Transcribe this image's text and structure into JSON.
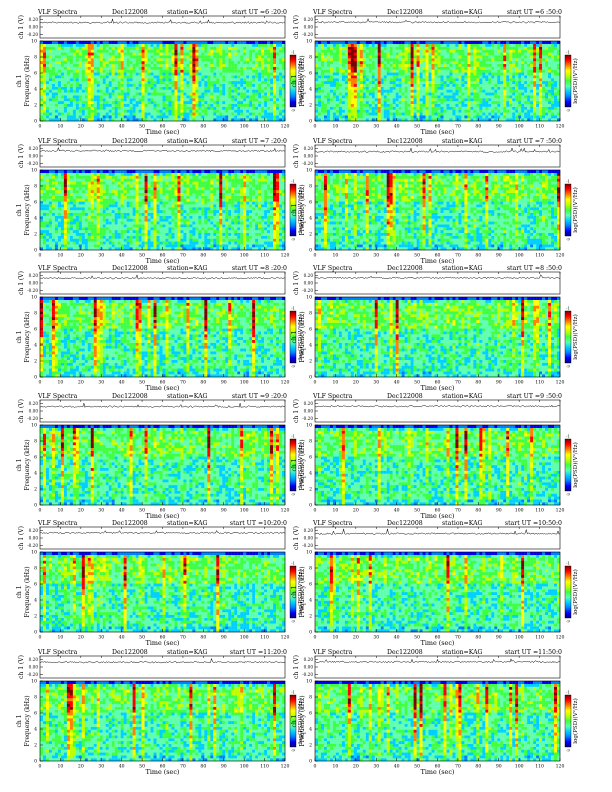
{
  "page": {
    "columns": 2,
    "rows": 6
  },
  "colors": {
    "colormap": [
      "#00007f",
      "#0000ff",
      "#0080ff",
      "#00d0ff",
      "#60ffb0",
      "#40ff40",
      "#c0ff00",
      "#ffff00",
      "#ff8000",
      "#ff0000",
      "#7f0000"
    ],
    "trace": "#000000"
  },
  "chart_data": [
    {
      "type": "heatmap",
      "title_left": "VLF Spectra",
      "date": "Dec122008",
      "station": "station=KAG",
      "start_ut": "start  UT =6 :20:0",
      "channel_label": "ch 1 (V)",
      "channel_ticks": [
        "0.20",
        "0.00",
        "-0.20"
      ],
      "freq_label": "Frequency  (kHz)",
      "freq_ticks": [
        "0",
        "2",
        "4",
        "6",
        "8",
        "10"
      ],
      "freq_range": [
        0,
        10
      ],
      "time_label": "Time  (sec)",
      "time_ticks": [
        "0",
        "10",
        "20",
        "30",
        "40",
        "50",
        "60",
        "70",
        "80",
        "90",
        "100",
        "110",
        "120"
      ],
      "time_range": [
        0,
        120
      ],
      "colorbar_label": "log(PSD)(V²/Hz)",
      "colorbar_range": [
        -9,
        -1
      ]
    },
    {
      "type": "heatmap",
      "title_left": "VLF Spectra",
      "date": "Dec122008",
      "station": "station=KAG",
      "start_ut": "start  UT =6 :50:0",
      "channel_label": "ch 1 (V)",
      "channel_ticks": [
        "0.20",
        "0.00",
        "-0.20"
      ],
      "freq_label": "Frequency  (kHz)",
      "freq_ticks": [
        "0",
        "2",
        "4",
        "6",
        "8",
        "10"
      ],
      "freq_range": [
        0,
        10
      ],
      "time_label": "Time  (sec)",
      "time_ticks": [
        "0",
        "10",
        "20",
        "30",
        "40",
        "50",
        "60",
        "70",
        "80",
        "90",
        "100",
        "110",
        "120"
      ],
      "time_range": [
        0,
        120
      ],
      "colorbar_label": "log(PSD)(V²/Hz)",
      "colorbar_range": [
        -9,
        -1
      ]
    },
    {
      "type": "heatmap",
      "title_left": "VLF Spectra",
      "date": "Dec122008",
      "station": "station=KAG",
      "start_ut": "start  UT =7 :20:0",
      "channel_label": "ch 1 (V)",
      "channel_ticks": [
        "0.20",
        "0.00",
        "-0.20"
      ],
      "freq_label": "Frequency  (kHz)",
      "freq_ticks": [
        "0",
        "2",
        "4",
        "6",
        "8",
        "10"
      ],
      "freq_range": [
        0,
        10
      ],
      "time_label": "Time  (sec)",
      "time_ticks": [
        "0",
        "10",
        "20",
        "30",
        "40",
        "50",
        "60",
        "70",
        "80",
        "90",
        "100",
        "110",
        "120"
      ],
      "time_range": [
        0,
        120
      ],
      "colorbar_label": "log(PSD)(V²/Hz)",
      "colorbar_range": [
        -9,
        -1
      ]
    },
    {
      "type": "heatmap",
      "title_left": "VLF Spectra",
      "date": "Dec122008",
      "station": "station=KAG",
      "start_ut": "start  UT =7 :50:0",
      "channel_label": "ch 1 (V)",
      "channel_ticks": [
        "0.20",
        "0.00",
        "-0.20"
      ],
      "freq_label": "Frequency  (kHz)",
      "freq_ticks": [
        "0",
        "2",
        "4",
        "6",
        "8",
        "10"
      ],
      "freq_range": [
        0,
        10
      ],
      "time_label": "Time  (sec)",
      "time_ticks": [
        "0",
        "10",
        "20",
        "30",
        "40",
        "50",
        "60",
        "70",
        "80",
        "90",
        "100",
        "110",
        "120"
      ],
      "time_range": [
        0,
        120
      ],
      "colorbar_label": "log(PSD)(V²/Hz)",
      "colorbar_range": [
        -9,
        -1
      ]
    },
    {
      "type": "heatmap",
      "title_left": "VLF Spectra",
      "date": "Dec122008",
      "station": "station=KAG",
      "start_ut": "start  UT =8 :20:0",
      "channel_label": "ch 1 (V)",
      "channel_ticks": [
        "0.20",
        "0.00",
        "-0.20"
      ],
      "freq_label": "Frequency  (kHz)",
      "freq_ticks": [
        "0",
        "2",
        "4",
        "6",
        "8",
        "10"
      ],
      "freq_range": [
        0,
        10
      ],
      "time_label": "Time  (sec)",
      "time_ticks": [
        "0",
        "10",
        "20",
        "30",
        "40",
        "50",
        "60",
        "70",
        "80",
        "90",
        "100",
        "110",
        "120"
      ],
      "time_range": [
        0,
        120
      ],
      "colorbar_label": "log(PSD)(V²/Hz)",
      "colorbar_range": [
        -9,
        -1
      ]
    },
    {
      "type": "heatmap",
      "title_left": "VLF Spectra",
      "date": "Dec122008",
      "station": "station=KAG",
      "start_ut": "start  UT =8 :50:0",
      "channel_label": "ch 1 (V)",
      "channel_ticks": [
        "0.20",
        "0.00",
        "-0.20"
      ],
      "freq_label": "Frequency  (kHz)",
      "freq_ticks": [
        "0",
        "2",
        "4",
        "6",
        "8",
        "10"
      ],
      "freq_range": [
        0,
        10
      ],
      "time_label": "Time  (sec)",
      "time_ticks": [
        "0",
        "10",
        "20",
        "30",
        "40",
        "50",
        "60",
        "70",
        "80",
        "90",
        "100",
        "110",
        "120"
      ],
      "time_range": [
        0,
        120
      ],
      "colorbar_label": "log(PSD)(V²/Hz)",
      "colorbar_range": [
        -9,
        -1
      ]
    },
    {
      "type": "heatmap",
      "title_left": "VLF Spectra",
      "date": "Dec122008",
      "station": "station=KAG",
      "start_ut": "start  UT =9 :20:0",
      "channel_label": "ch 1 (V)",
      "channel_ticks": [
        "0.20",
        "0.00",
        "-0.20"
      ],
      "freq_label": "Frequency  (kHz)",
      "freq_ticks": [
        "0",
        "2",
        "4",
        "6",
        "8",
        "10"
      ],
      "freq_range": [
        0,
        10
      ],
      "time_label": "Time  (sec)",
      "time_ticks": [
        "0",
        "10",
        "20",
        "30",
        "40",
        "50",
        "60",
        "70",
        "80",
        "90",
        "100",
        "110",
        "120"
      ],
      "time_range": [
        0,
        120
      ],
      "colorbar_label": "log(PSD)(V²/Hz)",
      "colorbar_range": [
        -9,
        -1
      ]
    },
    {
      "type": "heatmap",
      "title_left": "VLF Spectra",
      "date": "Dec122008",
      "station": "station=KAG",
      "start_ut": "start  UT =9 :50:0",
      "channel_label": "ch 1 (V)",
      "channel_ticks": [
        "0.20",
        "0.00",
        "-0.20"
      ],
      "freq_label": "Frequency  (kHz)",
      "freq_ticks": [
        "0",
        "2",
        "4",
        "6",
        "8",
        "10"
      ],
      "freq_range": [
        0,
        10
      ],
      "time_label": "Time  (sec)",
      "time_ticks": [
        "0",
        "10",
        "20",
        "30",
        "40",
        "50",
        "60",
        "70",
        "80",
        "90",
        "100",
        "110",
        "120"
      ],
      "time_range": [
        0,
        120
      ],
      "colorbar_label": "log(PSD)(V²/Hz)",
      "colorbar_range": [
        -9,
        -1
      ]
    },
    {
      "type": "heatmap",
      "title_left": "VLF Spectra",
      "date": "Dec122008",
      "station": "station=KAG",
      "start_ut": "start  UT =10:20:0",
      "channel_label": "ch 1 (V)",
      "channel_ticks": [
        "0.20",
        "0.00",
        "-0.20"
      ],
      "freq_label": "Frequency  (kHz)",
      "freq_ticks": [
        "0",
        "2",
        "4",
        "6",
        "8",
        "10"
      ],
      "freq_range": [
        0,
        10
      ],
      "time_label": "Time  (sec)",
      "time_ticks": [
        "0",
        "10",
        "20",
        "30",
        "40",
        "50",
        "60",
        "70",
        "80",
        "90",
        "100",
        "110",
        "120"
      ],
      "time_range": [
        0,
        120
      ],
      "colorbar_label": "log(PSD)(V²/Hz)",
      "colorbar_range": [
        -9,
        -1
      ]
    },
    {
      "type": "heatmap",
      "title_left": "VLF Spectra",
      "date": "Dec122008",
      "station": "station=KAG",
      "start_ut": "start  UT =10:50:0",
      "channel_label": "ch 1 (V)",
      "channel_ticks": [
        "0.20",
        "0.00",
        "-0.20"
      ],
      "freq_label": "Frequency  (kHz)",
      "freq_ticks": [
        "0",
        "2",
        "4",
        "6",
        "8",
        "10"
      ],
      "freq_range": [
        0,
        10
      ],
      "time_label": "Time  (sec)",
      "time_ticks": [
        "0",
        "10",
        "20",
        "30",
        "40",
        "50",
        "60",
        "70",
        "80",
        "90",
        "100",
        "110",
        "120"
      ],
      "time_range": [
        0,
        120
      ],
      "colorbar_label": "log(PSD)(V²/Hz)",
      "colorbar_range": [
        -9,
        -1
      ]
    },
    {
      "type": "heatmap",
      "title_left": "VLF Spectra",
      "date": "Dec122008",
      "station": "station=KAG",
      "start_ut": "start  UT =11:20:0",
      "channel_label": "ch 1 (V)",
      "channel_ticks": [
        "0.20",
        "0.00",
        "-0.20"
      ],
      "freq_label": "Frequency  (kHz)",
      "freq_ticks": [
        "0",
        "2",
        "4",
        "6",
        "8",
        "10"
      ],
      "freq_range": [
        0,
        10
      ],
      "time_label": "Time  (sec)",
      "time_ticks": [
        "0",
        "10",
        "20",
        "30",
        "40",
        "50",
        "60",
        "70",
        "80",
        "90",
        "100",
        "110",
        "120"
      ],
      "time_range": [
        0,
        120
      ],
      "colorbar_label": "log(PSD)(V²/Hz)",
      "colorbar_range": [
        -9,
        -1
      ]
    },
    {
      "type": "heatmap",
      "title_left": "VLF Spectra",
      "date": "Dec122008",
      "station": "station=KAG",
      "start_ut": "start  UT =11:50:0",
      "channel_label": "ch 1 (V)",
      "channel_ticks": [
        "0.20",
        "0.00",
        "-0.20"
      ],
      "freq_label": "Frequency  (kHz)",
      "freq_ticks": [
        "0",
        "2",
        "4",
        "6",
        "8",
        "10"
      ],
      "freq_range": [
        0,
        10
      ],
      "time_label": "Time  (sec)",
      "time_ticks": [
        "0",
        "10",
        "20",
        "30",
        "40",
        "50",
        "60",
        "70",
        "80",
        "90",
        "100",
        "110",
        "120"
      ],
      "time_range": [
        0,
        120
      ],
      "colorbar_label": "log(PSD)(V²/Hz)",
      "colorbar_range": [
        -9,
        -1
      ]
    }
  ]
}
